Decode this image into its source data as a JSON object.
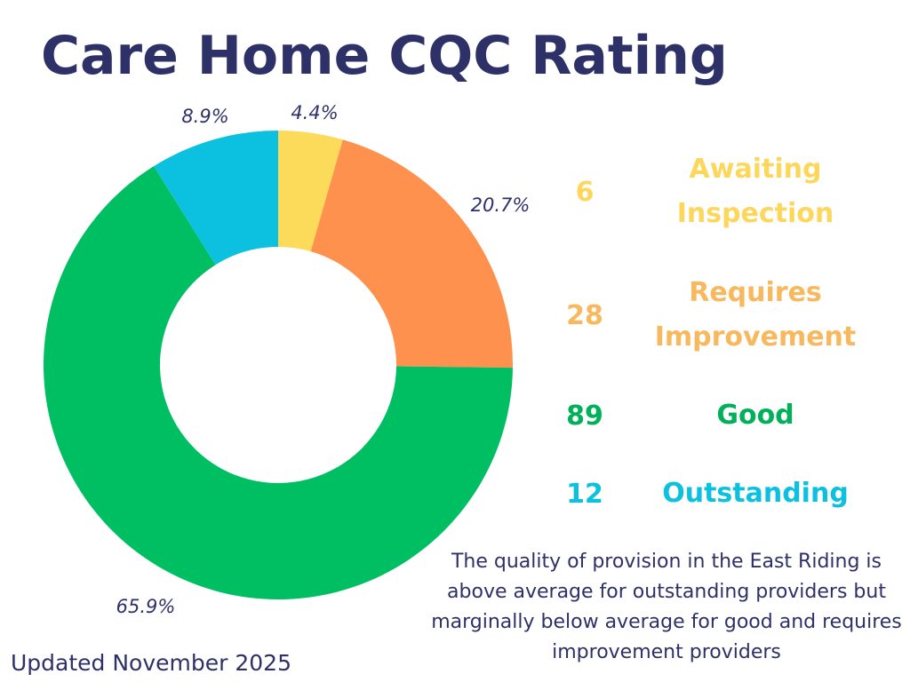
{
  "title": "Care Home CQC Rating",
  "chart_data": {
    "type": "pie",
    "variant": "donut",
    "title": "Care Home CQC Rating",
    "categories": [
      "Awaiting Inspection",
      "Requires Improvement",
      "Good",
      "Outstanding"
    ],
    "values": [
      6,
      28,
      89,
      12
    ],
    "percent_labels": [
      "4.4%",
      "20.7%",
      "65.9%",
      "8.9%"
    ],
    "colors": [
      "#fddb5a",
      "#fd914d",
      "#00bf63",
      "#0cc0df"
    ]
  },
  "legend": [
    {
      "count": "6",
      "label": "Awaiting Inspection",
      "color": "#fdd75c"
    },
    {
      "count": "28",
      "label": "Requires Improvement",
      "color": "#f8b85e"
    },
    {
      "count": "89",
      "label": "Good",
      "color": "#00b15a"
    },
    {
      "count": "12",
      "label": "Outstanding",
      "color": "#0cc0df"
    }
  ],
  "note": "The quality of provision in the East Riding is above average for outstanding providers but marginally below average for good and requires improvement providers",
  "updated": "Updated November 2025",
  "colors": {
    "title": "#2e3167",
    "text": "#2e3167",
    "background": "#ffffff"
  }
}
